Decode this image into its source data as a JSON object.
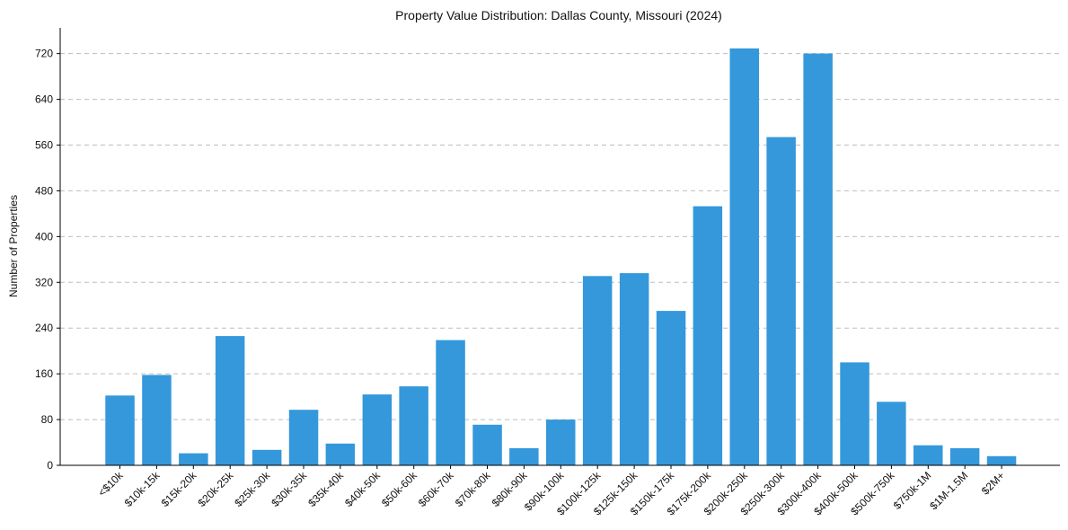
{
  "chart_data": {
    "type": "bar",
    "title": "Property Value Distribution: Dallas County, Missouri (2024)",
    "xlabel": "",
    "ylabel": "Number of Properties",
    "categories": [
      "<$10k",
      "$10k-15k",
      "$15k-20k",
      "$20k-25k",
      "$25k-30k",
      "$30k-35k",
      "$35k-40k",
      "$40k-50k",
      "$50k-60k",
      "$60k-70k",
      "$70k-80k",
      "$80k-90k",
      "$90k-100k",
      "$100k-125k",
      "$125k-150k",
      "$150k-175k",
      "$175k-200k",
      "$200k-250k",
      "$250k-300k",
      "$300k-400k",
      "$400k-500k",
      "$500k-750k",
      "$750k-1M",
      "$1M-1.5M",
      "$2M+"
    ],
    "values": [
      122,
      158,
      21,
      226,
      27,
      97,
      38,
      124,
      138,
      219,
      71,
      30,
      80,
      331,
      336,
      270,
      453,
      729,
      574,
      720,
      180,
      111,
      35,
      30,
      16
    ],
    "yticks": [
      0,
      80,
      160,
      240,
      320,
      400,
      480,
      560,
      640,
      720
    ],
    "ylim": [
      0,
      765
    ],
    "grid": "y-dashed",
    "color": "#3498db"
  }
}
